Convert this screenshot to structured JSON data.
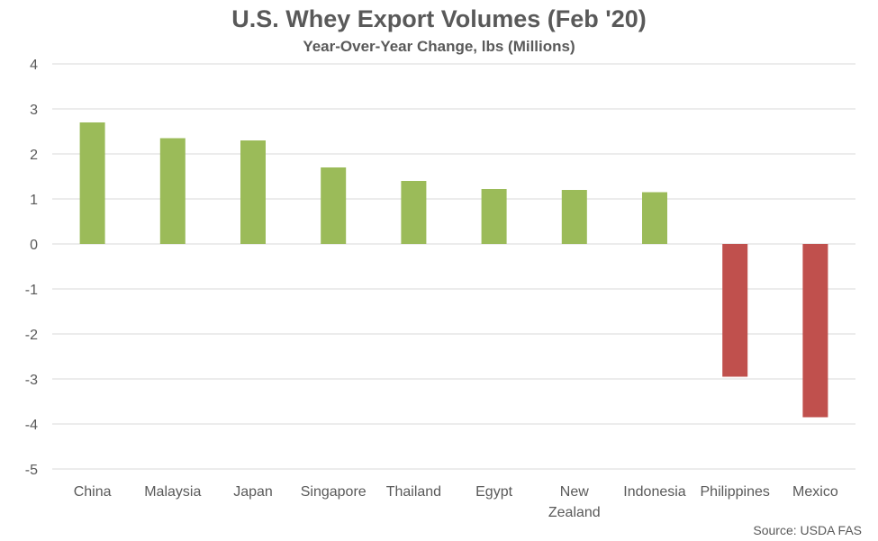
{
  "chart_data": {
    "type": "bar",
    "title": "U.S. Whey Export Volumes (Feb '20)",
    "subtitle": "Year-Over-Year Change, lbs (Millions)",
    "categories": [
      "China",
      "Malaysia",
      "Japan",
      "Singapore",
      "Thailand",
      "Egypt",
      "New Zealand",
      "Indonesia",
      "Philippines",
      "Mexico"
    ],
    "category_lines": [
      [
        "China"
      ],
      [
        "Malaysia"
      ],
      [
        "Japan"
      ],
      [
        "Singapore"
      ],
      [
        "Thailand"
      ],
      [
        "Egypt"
      ],
      [
        "New",
        "Zealand"
      ],
      [
        "Indonesia"
      ],
      [
        "Philippines"
      ],
      [
        "Mexico"
      ]
    ],
    "values": [
      2.7,
      2.35,
      2.3,
      1.7,
      1.4,
      1.22,
      1.2,
      1.15,
      -2.95,
      -3.85
    ],
    "ylim": [
      -5,
      4
    ],
    "yticks": [
      4,
      3,
      2,
      1,
      0,
      -1,
      -2,
      -3,
      -4,
      -5
    ],
    "grid": true,
    "legend": "none",
    "colors": {
      "positive": "#9BBB59",
      "negative": "#C0504D",
      "grid": "#D9D9D9"
    },
    "source": "Source: USDA FAS"
  }
}
